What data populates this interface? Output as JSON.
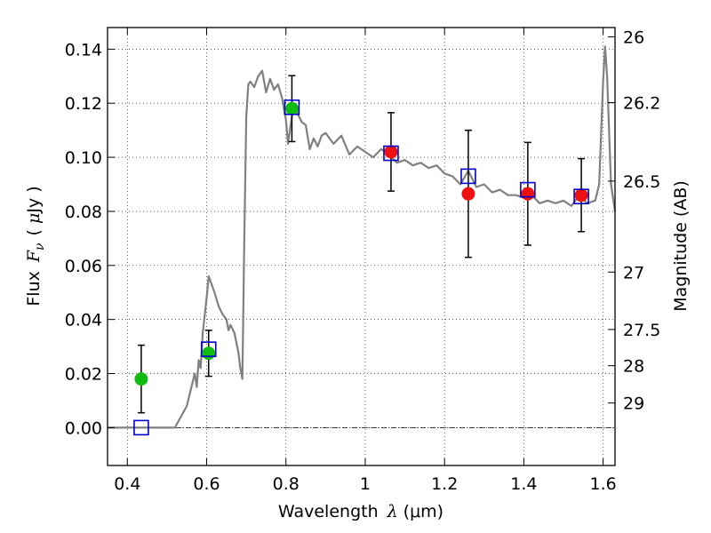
{
  "chart_data": {
    "type": "scatter",
    "title": "",
    "xlabel": {
      "text": "Wavelength",
      "symbol": "λ",
      "unit": "(μm)"
    },
    "ylabel": {
      "text": "Flux",
      "symbol": "F",
      "subscript": "ν",
      "unit_open": "(",
      "unit_mu": "μ",
      "unit_rest": "Jy",
      "unit_close": ")"
    },
    "ylabel_right": "Magnitude (AB)",
    "xlim": [
      0.35,
      1.63
    ],
    "ylim": [
      -0.014,
      0.148
    ],
    "xticks": [
      0.4,
      0.6,
      0.8,
      1.0,
      1.2,
      1.4,
      1.6
    ],
    "xtick_labels": [
      "0.4",
      "0.6",
      "0.8",
      "1",
      "1.2",
      "1.4",
      "1.6"
    ],
    "yticks": [
      0.0,
      0.02,
      0.04,
      0.06,
      0.08,
      0.1,
      0.12,
      0.14
    ],
    "ytick_labels": [
      "0.00",
      "0.02",
      "0.04",
      "0.06",
      "0.08",
      "0.10",
      "0.12",
      "0.14"
    ],
    "right_ticks": [
      {
        "mag": 26,
        "label": "26"
      },
      {
        "mag": 26.2,
        "label": "26.2"
      },
      {
        "mag": 26.5,
        "label": "26.5"
      },
      {
        "mag": 27,
        "label": "27"
      },
      {
        "mag": 27.5,
        "label": "27.5"
      },
      {
        "mag": 28,
        "label": "28"
      },
      {
        "mag": 29,
        "label": "29"
      }
    ],
    "grid": true,
    "zero_line": true,
    "colors": {
      "model": "#808080",
      "green": "#11bb11",
      "red": "#ee1111",
      "model_box": "#0000cc",
      "errorbar": "#000000"
    },
    "model_spectrum": {
      "x": [
        0.35,
        0.52,
        0.55,
        0.57,
        0.575,
        0.58,
        0.585,
        0.59,
        0.6,
        0.605,
        0.61,
        0.62,
        0.63,
        0.64,
        0.65,
        0.655,
        0.66,
        0.67,
        0.68,
        0.685,
        0.69,
        0.695,
        0.7,
        0.705,
        0.71,
        0.72,
        0.73,
        0.74,
        0.75,
        0.76,
        0.77,
        0.78,
        0.79,
        0.8,
        0.805,
        0.81,
        0.82,
        0.83,
        0.84,
        0.85,
        0.86,
        0.87,
        0.88,
        0.89,
        0.9,
        0.92,
        0.94,
        0.96,
        0.98,
        1.0,
        1.02,
        1.04,
        1.06,
        1.08,
        1.1,
        1.12,
        1.14,
        1.16,
        1.18,
        1.2,
        1.22,
        1.24,
        1.26,
        1.28,
        1.3,
        1.32,
        1.34,
        1.36,
        1.38,
        1.4,
        1.42,
        1.44,
        1.46,
        1.48,
        1.5,
        1.52,
        1.54,
        1.56,
        1.58,
        1.59,
        1.6,
        1.605,
        1.61,
        1.615,
        1.62,
        1.63
      ],
      "y": [
        0.0,
        0.0,
        0.008,
        0.02,
        0.015,
        0.025,
        0.022,
        0.035,
        0.048,
        0.056,
        0.054,
        0.05,
        0.045,
        0.042,
        0.04,
        0.036,
        0.038,
        0.035,
        0.028,
        0.022,
        0.018,
        0.07,
        0.115,
        0.127,
        0.128,
        0.126,
        0.13,
        0.132,
        0.124,
        0.129,
        0.125,
        0.127,
        0.122,
        0.114,
        0.105,
        0.11,
        0.12,
        0.116,
        0.113,
        0.112,
        0.103,
        0.107,
        0.104,
        0.108,
        0.109,
        0.105,
        0.108,
        0.101,
        0.104,
        0.102,
        0.1,
        0.103,
        0.101,
        0.098,
        0.099,
        0.097,
        0.098,
        0.096,
        0.097,
        0.094,
        0.093,
        0.09,
        0.095,
        0.089,
        0.09,
        0.087,
        0.088,
        0.086,
        0.086,
        0.085,
        0.086,
        0.083,
        0.084,
        0.083,
        0.084,
        0.082,
        0.086,
        0.083,
        0.084,
        0.09,
        0.128,
        0.141,
        0.13,
        0.11,
        0.09,
        0.08
      ]
    },
    "observed": [
      {
        "x": 0.435,
        "y": 0.018,
        "yerr": 0.0125,
        "color": "green"
      },
      {
        "x": 0.605,
        "y": 0.0275,
        "yerr": 0.0085,
        "color": "green"
      },
      {
        "x": 0.815,
        "y": 0.118,
        "yerr": 0.0122,
        "color": "green"
      },
      {
        "x": 1.065,
        "y": 0.102,
        "yerr": 0.0145,
        "color": "red"
      },
      {
        "x": 1.26,
        "y": 0.0865,
        "yerr": 0.0235,
        "color": "red"
      },
      {
        "x": 1.41,
        "y": 0.0865,
        "yerr": 0.019,
        "color": "red"
      },
      {
        "x": 1.545,
        "y": 0.086,
        "yerr": 0.0135,
        "color": "red"
      }
    ],
    "model_points": [
      {
        "x": 0.435,
        "y": 0.0
      },
      {
        "x": 0.605,
        "y": 0.029
      },
      {
        "x": 0.815,
        "y": 0.1185
      },
      {
        "x": 1.065,
        "y": 0.1015
      },
      {
        "x": 1.26,
        "y": 0.093
      },
      {
        "x": 1.41,
        "y": 0.088
      },
      {
        "x": 1.545,
        "y": 0.0855
      }
    ]
  }
}
